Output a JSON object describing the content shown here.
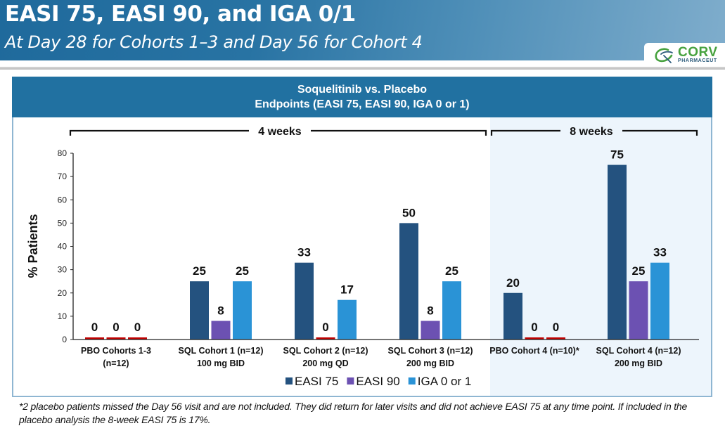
{
  "slide": {
    "title": "EASI 75, EASI 90, and IGA 0/1",
    "subtitle": "At Day 28 for Cohorts 1–3 and Day 56 for Cohort 4",
    "logo": {
      "name": "CORV",
      "sub": "PHARMACEUT",
      "icon": "swirl-logo-icon"
    }
  },
  "panel": {
    "header_line1": "Soquelitinib vs. Placebo",
    "header_line2": "Endpoints (EASI 75, EASI 90, IGA 0 or 1)",
    "periods": [
      {
        "label": "4 weeks",
        "groups": [
          0,
          1,
          2,
          3
        ]
      },
      {
        "label": "8 weeks",
        "groups": [
          4,
          5
        ]
      }
    ]
  },
  "chart_data": {
    "type": "bar",
    "title": "Soquelitinib vs. Placebo Endpoints (EASI 75, EASI 90, IGA 0 or 1)",
    "xlabel": "",
    "ylabel": "% Patients",
    "ylim": [
      0,
      80
    ],
    "yticks": [
      0,
      10,
      20,
      30,
      40,
      50,
      60,
      70,
      80
    ],
    "grid": false,
    "legend_position": "bottom",
    "categories": [
      [
        "PBO Cohorts 1-3",
        "(n=12)"
      ],
      [
        "SQL Cohort 1 (n=12)",
        "100 mg BID"
      ],
      [
        "SQL Cohort 2 (n=12)",
        "200 mg QD"
      ],
      [
        "SQL Cohort 3 (n=12)",
        "200 mg BID"
      ],
      [
        "PBO Cohort 4 (n=10)*",
        ""
      ],
      [
        "SQL Cohort 4 (n=12)",
        "200 mg BID"
      ]
    ],
    "series": [
      {
        "name": "EASI 75",
        "color": "#24527f",
        "values": [
          0,
          25,
          33,
          50,
          20,
          75
        ]
      },
      {
        "name": "EASI 90",
        "color": "#6c51b2",
        "values": [
          0,
          8,
          0,
          8,
          0,
          25
        ]
      },
      {
        "name": "IGA 0 or 1",
        "color": "#2a93d6",
        "values": [
          0,
          25,
          17,
          25,
          0,
          33
        ]
      }
    ],
    "zero_value_color": "#c00000",
    "data_labels": [
      [
        "0",
        "0",
        "0"
      ],
      [
        "25",
        "8",
        "25"
      ],
      [
        "33",
        "0",
        "17"
      ],
      [
        "50",
        "8",
        "25"
      ],
      [
        "20",
        "0",
        "0"
      ],
      [
        "75",
        "25",
        "33"
      ]
    ]
  },
  "footnote": "*2 placebo patients missed the Day 56 visit and are not included. They did return for later visits and did not achieve EASI 75 at any time point. If included in the placebo analysis the 8-week EASI 75 is 17%."
}
